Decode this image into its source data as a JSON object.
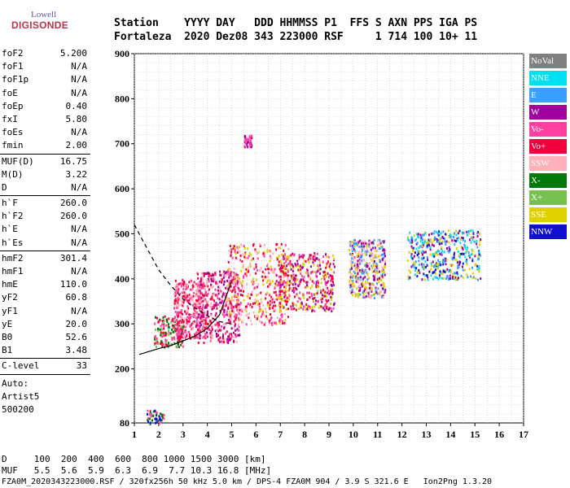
{
  "logo": {
    "line1": "Lowell",
    "line2": "DIGISONDE"
  },
  "header": {
    "line1": "Station    YYYY DAY   DDD HHMMSS P1  FFS S AXN PPS IGA PS",
    "line2": "Fortaleza  2020 Dez08 343 223000 RSF     1 714 100 10+ 11"
  },
  "params": [
    {
      "k": "foF2",
      "v": "5.200"
    },
    {
      "k": "foF1",
      "v": "N/A"
    },
    {
      "k": "foF1p",
      "v": "N/A"
    },
    {
      "k": "foE",
      "v": "N/A"
    },
    {
      "k": "foEp",
      "v": "0.40"
    },
    {
      "k": "fxI",
      "v": "5.80"
    },
    {
      "k": "foEs",
      "v": "N/A"
    },
    {
      "k": "fmin",
      "v": "2.00"
    },
    {
      "sep": true
    },
    {
      "k": "MUF(D)",
      "v": "16.75"
    },
    {
      "k": "M(D)",
      "v": "3.22"
    },
    {
      "k": "D",
      "v": "N/A"
    },
    {
      "sep": true
    },
    {
      "k": "h`F",
      "v": "260.0"
    },
    {
      "k": "h`F2",
      "v": "260.0"
    },
    {
      "k": "h`E",
      "v": "N/A"
    },
    {
      "k": "h`Es",
      "v": "N/A"
    },
    {
      "sep": true
    },
    {
      "k": "hmF2",
      "v": "301.4"
    },
    {
      "k": "hmF1",
      "v": "N/A"
    },
    {
      "k": "hmE",
      "v": "110.0"
    },
    {
      "k": "yF2",
      "v": "60.8"
    },
    {
      "k": "yF1",
      "v": "N/A"
    },
    {
      "k": "yE",
      "v": "20.0"
    },
    {
      "k": "B0",
      "v": "52.6"
    },
    {
      "k": "B1",
      "v": "3.48"
    },
    {
      "sep": true
    },
    {
      "k": "C-level",
      "v": "33"
    },
    {
      "sep": true
    }
  ],
  "auto": {
    "line1": "Auto:",
    "line2": "Artist5",
    "line3": "500200"
  },
  "legend": [
    {
      "label": "NoVal",
      "color": "#808080"
    },
    {
      "label": "NNE",
      "color": "#00e0f0"
    },
    {
      "label": "E",
      "color": "#3aa0ff"
    },
    {
      "label": "W",
      "color": "#a0009c"
    },
    {
      "label": "Vo-",
      "color": "#ff40a0"
    },
    {
      "label": "Vo+",
      "color": "#f0003c"
    },
    {
      "label": "SSW",
      "color": "#ffb0b8"
    },
    {
      "label": "X-",
      "color": "#00780a"
    },
    {
      "label": "X+",
      "color": "#78c050"
    },
    {
      "label": "SSE",
      "color": "#e0d000"
    },
    {
      "label": "NNW",
      "color": "#1010d0"
    }
  ],
  "footer": {
    "line1": "D     100  200  400  600  800 1000 1500 3000 [km]",
    "line2": "MUF   5.5  5.6  5.9  6.3  6.9  7.7 10.3 16.8 [MHz]",
    "line3": "FZA0M_2020343223000.RSF / 320fx256h 50 kHz 5.0 km / DPS-4 FZA0M 904 / 3.9 S 321.6 E   Ion2Png 1.3.20"
  },
  "chart_data": {
    "type": "scatter",
    "xlim": [
      1,
      17
    ],
    "ylim": [
      80,
      900
    ],
    "x_ticks": [
      1,
      2,
      3,
      4,
      5,
      6,
      7,
      8,
      9,
      10,
      11,
      12,
      13,
      14,
      15,
      16,
      17
    ],
    "y_ticks": [
      80,
      200,
      300,
      400,
      500,
      600,
      700,
      800,
      900
    ],
    "grid": true,
    "traces": [
      {
        "style": "dashed",
        "color": "#000000",
        "x": [
          1.0,
          1.5,
          2.0,
          2.5,
          3.0,
          3.5,
          4.0,
          4.5,
          5.0
        ],
        "y": [
          520,
          470,
          420,
          385,
          355,
          335,
          318,
          305,
          300
        ]
      },
      {
        "style": "solid",
        "color": "#000000",
        "x": [
          1.2,
          2.0,
          2.5,
          3.0,
          3.5,
          4.0,
          4.5,
          5.0
        ],
        "y": [
          232,
          245,
          252,
          262,
          273,
          290,
          320,
          395
        ]
      }
    ],
    "echo_clusters": [
      {
        "x": [
          1.8,
          3.0
        ],
        "y": [
          250,
          320
        ],
        "colors": [
          "#f0003c",
          "#ff40a0",
          "#00780a",
          "#78c050"
        ]
      },
      {
        "x": [
          2.6,
          4.0
        ],
        "y": [
          270,
          400
        ],
        "colors": [
          "#ff40a0",
          "#ffb0b8",
          "#f0003c"
        ]
      },
      {
        "x": [
          3.5,
          5.3
        ],
        "y": [
          260,
          420
        ],
        "colors": [
          "#f0003c",
          "#ff40a0",
          "#a0009c",
          "#ffb0b8"
        ]
      },
      {
        "x": [
          4.8,
          7.3
        ],
        "y": [
          300,
          480
        ],
        "colors": [
          "#f0003c",
          "#ff40a0",
          "#e0d000",
          "#ffb0b8"
        ]
      },
      {
        "x": [
          6.9,
          9.2
        ],
        "y": [
          330,
          460
        ],
        "colors": [
          "#f0003c",
          "#ff40a0",
          "#e0d000",
          "#a0009c"
        ]
      },
      {
        "x": [
          9.8,
          11.3
        ],
        "y": [
          360,
          490
        ],
        "colors": [
          "#ffb0b8",
          "#e0d000",
          "#3aa0ff",
          "#a0009c"
        ]
      },
      {
        "x": [
          12.2,
          15.2
        ],
        "y": [
          400,
          510
        ],
        "colors": [
          "#1010d0",
          "#3aa0ff",
          "#e0d000",
          "#00e0f0",
          "#a0009c"
        ]
      },
      {
        "x": [
          1.5,
          2.2
        ],
        "y": [
          80,
          110
        ],
        "colors": [
          "#ff40a0",
          "#1010d0",
          "#00780a"
        ]
      },
      {
        "x": [
          5.5,
          5.8
        ],
        "y": [
          695,
          720
        ],
        "colors": [
          "#a0009c",
          "#ff40a0"
        ]
      }
    ]
  }
}
